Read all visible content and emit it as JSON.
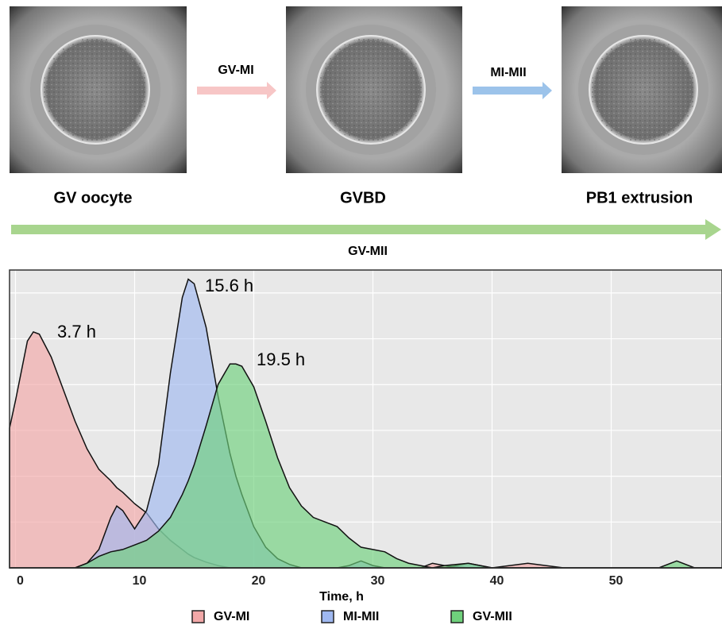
{
  "figure": {
    "stages": [
      "GV oocyte",
      "GVBD",
      "PB1 extrusion"
    ],
    "transitions": [
      "GV-MI",
      "MI-MII"
    ],
    "overall": "GV-MII"
  },
  "chart_data": {
    "type": "area",
    "xlabel": "Time, h",
    "annotations": [
      "3.7 h",
      "15.6 h",
      "19.5 h"
    ],
    "x": [
      -0.5,
      0,
      1,
      1.5,
      2,
      3,
      4,
      5,
      6,
      7,
      8,
      8.5,
      9,
      10,
      11,
      12,
      13,
      14,
      14.5,
      15,
      16,
      17,
      18,
      18.5,
      19,
      20,
      21,
      22,
      23,
      24,
      25,
      26,
      27,
      28,
      29,
      30,
      31,
      32,
      33,
      34,
      35,
      36,
      38,
      40,
      43,
      46,
      50,
      54,
      55.5,
      57,
      59.3
    ],
    "series": [
      {
        "name": "GV-MI",
        "color": "#f2a8a8",
        "values": [
          0.061,
          0.073,
          0.099,
          0.103,
          0.102,
          0.092,
          0.078,
          0.064,
          0.052,
          0.043,
          0.038,
          0.035,
          0.033,
          0.028,
          0.024,
          0.017,
          0.012,
          0.008,
          0.006,
          0.0045,
          0.0025,
          0.001,
          0,
          0,
          0,
          0,
          0,
          0,
          0,
          0,
          0,
          0,
          0,
          0,
          0,
          0,
          0,
          0,
          0,
          0,
          0.002,
          0.001,
          0,
          0,
          0.002,
          0,
          0,
          0,
          0,
          0,
          0
        ]
      },
      {
        "name": "MI-MII",
        "color": "#9fb8f0",
        "values": [
          0,
          0,
          0,
          0,
          0,
          0,
          0,
          0,
          0.002,
          0.008,
          0.022,
          0.027,
          0.025,
          0.017,
          0.025,
          0.045,
          0.085,
          0.118,
          0.126,
          0.124,
          0.105,
          0.075,
          0.05,
          0.04,
          0.032,
          0.018,
          0.009,
          0.004,
          0.0015,
          0,
          0,
          0,
          0,
          0.001,
          0.003,
          0.001,
          0,
          0,
          0,
          0,
          0,
          0,
          0.002,
          0,
          0,
          0,
          0,
          0,
          0,
          0,
          0
        ]
      },
      {
        "name": "GV-MII",
        "color": "#6fd17c",
        "values": [
          0,
          0,
          0,
          0,
          0,
          0,
          0,
          0,
          0.002,
          0.005,
          0.007,
          0.0075,
          0.008,
          0.01,
          0.012,
          0.016,
          0.022,
          0.032,
          0.038,
          0.045,
          0.062,
          0.08,
          0.089,
          0.089,
          0.088,
          0.079,
          0.064,
          0.048,
          0.035,
          0.027,
          0.022,
          0.02,
          0.018,
          0.013,
          0.009,
          0.008,
          0.007,
          0.004,
          0.002,
          0.001,
          0,
          0.001,
          0.002,
          0,
          0,
          0,
          0,
          0,
          0.003,
          0,
          0
        ]
      }
    ],
    "xlim": [
      -0.5,
      59.3
    ],
    "xticks": [
      0,
      10,
      20,
      30,
      40,
      50
    ],
    "ylim": [
      0,
      0.13
    ],
    "yticks": [
      0,
      0.02,
      0.04,
      0.06,
      0.08,
      0.1,
      0.12
    ],
    "grid": true
  }
}
